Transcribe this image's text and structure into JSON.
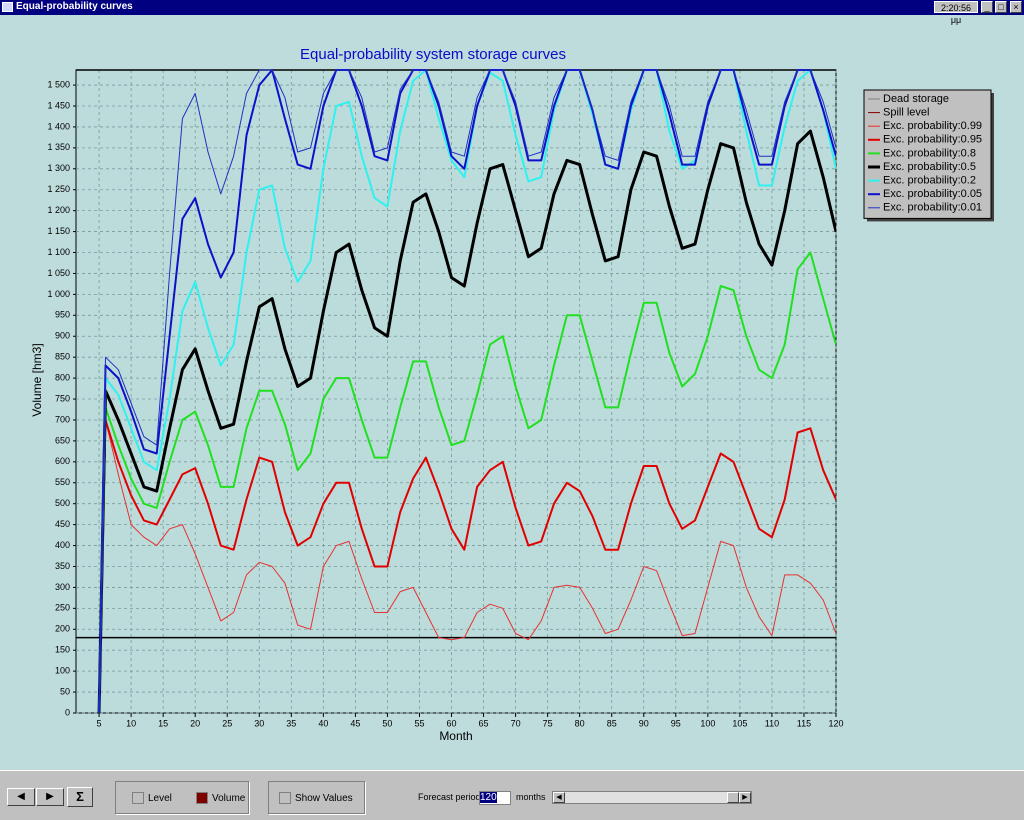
{
  "window": {
    "title": "Equal-probability curves",
    "clock": "2:20:56 μμ",
    "toolbar": {
      "sigma": "Σ",
      "level": "Level",
      "volume": "Volume",
      "show_values": "Show Values",
      "forecast_label": "Forecast period",
      "forecast_value": "120",
      "forecast_unit": "months"
    }
  },
  "chart_data": {
    "type": "line",
    "title": "Equal-probability system storage curves",
    "x_label": "Month",
    "y_label": "Volume [hm3]",
    "xlim": [
      1.4,
      120
    ],
    "ylim": [
      0,
      1536
    ],
    "grid": true,
    "legend": "right",
    "xticks": [
      5,
      10,
      15,
      20,
      25,
      30,
      35,
      40,
      45,
      50,
      55,
      60,
      65,
      70,
      75,
      80,
      85,
      90,
      95,
      100,
      105,
      110,
      115,
      120
    ],
    "yticks": [
      0,
      50,
      100,
      150,
      200,
      250,
      300,
      350,
      400,
      450,
      500,
      550,
      600,
      650,
      700,
      750,
      800,
      850,
      900,
      950,
      {
        "value": 1000,
        "label": "1 000"
      },
      {
        "value": 1050,
        "label": "1 050"
      },
      {
        "value": 1100,
        "label": "1 100"
      },
      {
        "value": 1150,
        "label": "1 150"
      },
      {
        "value": 1200,
        "label": "1 200"
      },
      {
        "value": 1250,
        "label": "1 250"
      },
      {
        "value": 1300,
        "label": "1 300"
      },
      {
        "value": 1350,
        "label": "1 350"
      },
      {
        "value": 1400,
        "label": "1 400"
      },
      {
        "value": 1450,
        "label": "1 450"
      },
      {
        "value": 1500,
        "label": "1 500"
      }
    ],
    "x": [
      5,
      6,
      8,
      10,
      12,
      14,
      16,
      18,
      20,
      22,
      24,
      26,
      28,
      30,
      32,
      34,
      36,
      38,
      40,
      42,
      44,
      46,
      48,
      50,
      52,
      54,
      56,
      58,
      60,
      62,
      64,
      66,
      68,
      70,
      72,
      74,
      76,
      78,
      80,
      82,
      84,
      86,
      88,
      90,
      92,
      94,
      96,
      98,
      100,
      102,
      104,
      106,
      108,
      110,
      112,
      114,
      116,
      118,
      120
    ],
    "levels": [
      {
        "name": "Dead storage",
        "color": "#000000",
        "legend_color": "#808080",
        "level": 180
      },
      {
        "name": "Spill level",
        "color": "#000000",
        "legend_color": "#800000",
        "level": 1536
      }
    ],
    "series": [
      {
        "name": "Exc. probability:0.99",
        "color": "#e83030",
        "width": 1,
        "values": [
          0,
          700,
          570,
          450,
          420,
          400,
          440,
          450,
          380,
          300,
          220,
          240,
          330,
          360,
          350,
          310,
          210,
          200,
          350,
          400,
          410,
          320,
          240,
          240,
          290,
          300,
          240,
          180,
          175,
          180,
          240,
          260,
          250,
          190,
          175,
          220,
          300,
          305,
          300,
          250,
          190,
          200,
          270,
          350,
          340,
          260,
          185,
          190,
          300,
          410,
          400,
          300,
          230,
          185,
          330,
          330,
          310,
          270,
          190
        ]
      },
      {
        "name": "Exc. probability:0.95",
        "color": "#e00000",
        "width": 2,
        "values": [
          0,
          700,
          600,
          520,
          460,
          450,
          510,
          570,
          585,
          500,
          400,
          390,
          510,
          610,
          600,
          480,
          400,
          420,
          500,
          550,
          550,
          440,
          350,
          350,
          480,
          560,
          610,
          530,
          440,
          390,
          540,
          580,
          600,
          490,
          400,
          410,
          500,
          550,
          530,
          470,
          390,
          390,
          500,
          590,
          590,
          500,
          440,
          460,
          540,
          620,
          600,
          520,
          440,
          420,
          510,
          670,
          680,
          580,
          510
        ]
      },
      {
        "name": "Exc. probability:0.8",
        "color": "#20e020",
        "width": 2,
        "values": [
          0,
          730,
          640,
          560,
          500,
          490,
          600,
          700,
          720,
          640,
          540,
          540,
          680,
          770,
          770,
          690,
          580,
          620,
          750,
          800,
          800,
          700,
          610,
          610,
          730,
          840,
          840,
          730,
          640,
          650,
          760,
          880,
          900,
          780,
          680,
          700,
          830,
          950,
          950,
          840,
          730,
          730,
          860,
          980,
          980,
          860,
          780,
          810,
          900,
          1020,
          1010,
          900,
          820,
          800,
          880,
          1060,
          1100,
          990,
          880
        ]
      },
      {
        "name": "Exc. probability:0.5",
        "color": "#000000",
        "width": 3,
        "values": [
          0,
          770,
          700,
          620,
          540,
          530,
          680,
          820,
          870,
          770,
          680,
          690,
          840,
          970,
          990,
          870,
          780,
          800,
          960,
          1100,
          1120,
          1010,
          920,
          900,
          1080,
          1220,
          1240,
          1150,
          1040,
          1020,
          1170,
          1300,
          1310,
          1200,
          1090,
          1110,
          1240,
          1320,
          1310,
          1190,
          1080,
          1090,
          1250,
          1340,
          1330,
          1210,
          1110,
          1120,
          1250,
          1360,
          1350,
          1220,
          1120,
          1070,
          1200,
          1360,
          1390,
          1280,
          1150
        ]
      },
      {
        "name": "Exc. probability:0.2",
        "color": "#30f0f0",
        "width": 2,
        "values": [
          0,
          800,
          760,
          680,
          600,
          580,
          750,
          960,
          1030,
          920,
          830,
          880,
          1100,
          1250,
          1260,
          1110,
          1030,
          1080,
          1300,
          1450,
          1460,
          1330,
          1230,
          1210,
          1390,
          1510,
          1536,
          1420,
          1320,
          1280,
          1450,
          1530,
          1510,
          1380,
          1270,
          1280,
          1440,
          1536,
          1536,
          1430,
          1310,
          1300,
          1440,
          1536,
          1536,
          1390,
          1300,
          1320,
          1450,
          1536,
          1536,
          1390,
          1260,
          1260,
          1400,
          1510,
          1536,
          1440,
          1300
        ]
      },
      {
        "name": "Exc. probability:0.05",
        "color": "#0c10c8",
        "width": 2,
        "values": [
          0,
          830,
          800,
          720,
          630,
          620,
          900,
          1180,
          1230,
          1120,
          1040,
          1100,
          1380,
          1500,
          1536,
          1420,
          1310,
          1300,
          1450,
          1536,
          1536,
          1450,
          1330,
          1320,
          1480,
          1536,
          1536,
          1450,
          1330,
          1300,
          1450,
          1536,
          1536,
          1450,
          1320,
          1320,
          1450,
          1536,
          1536,
          1440,
          1310,
          1300,
          1450,
          1536,
          1536,
          1430,
          1310,
          1310,
          1450,
          1536,
          1536,
          1420,
          1310,
          1310,
          1450,
          1536,
          1536,
          1440,
          1330
        ]
      },
      {
        "name": "Exc. probability:0.01",
        "color": "#2030c0",
        "width": 1,
        "values": [
          0,
          850,
          820,
          740,
          660,
          640,
          1050,
          1420,
          1480,
          1340,
          1240,
          1330,
          1480,
          1536,
          1536,
          1470,
          1340,
          1350,
          1480,
          1536,
          1536,
          1470,
          1340,
          1350,
          1490,
          1536,
          1536,
          1460,
          1340,
          1330,
          1470,
          1536,
          1536,
          1460,
          1330,
          1340,
          1470,
          1536,
          1536,
          1440,
          1330,
          1320,
          1460,
          1536,
          1536,
          1450,
          1330,
          1330,
          1460,
          1536,
          1536,
          1440,
          1330,
          1330,
          1460,
          1536,
          1536,
          1460,
          1350
        ]
      }
    ]
  }
}
